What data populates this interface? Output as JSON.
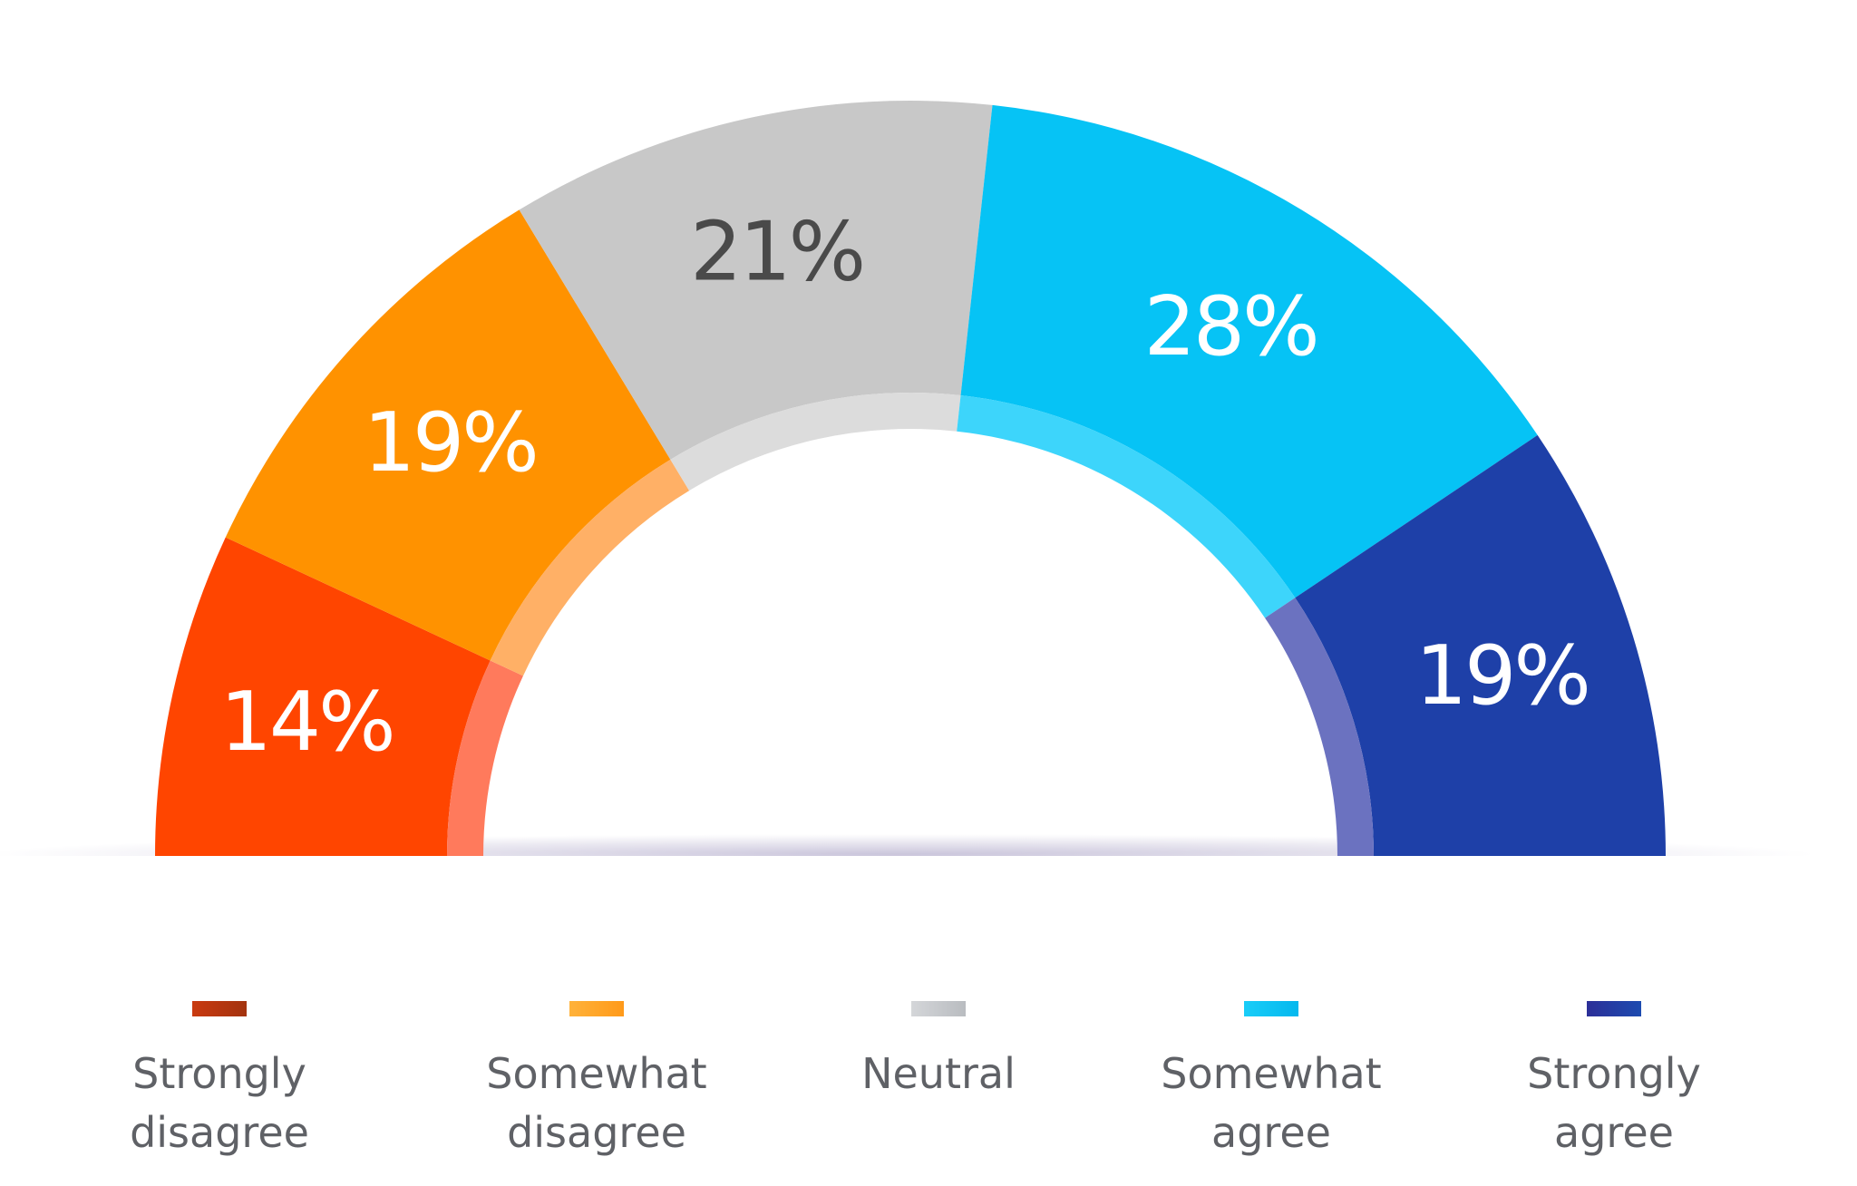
{
  "chart_data": {
    "type": "pie",
    "variant": "semi-donut",
    "unit": "%",
    "series": [
      {
        "name": "Strongly disagree",
        "legend_lines": [
          "Strongly",
          "disagree"
        ],
        "value": 14,
        "label": "14%",
        "color": "#ff4500",
        "color_light": "#ff7a5c",
        "label_color": "#ffffff",
        "swatch": [
          "#c93a10",
          "#a3330f"
        ]
      },
      {
        "name": "Somewhat disagree",
        "legend_lines": [
          "Somewhat",
          "disagree"
        ],
        "value": 19,
        "label": "19%",
        "color": "#ff9200",
        "color_light": "#ffb066",
        "label_color": "#ffffff",
        "swatch": [
          "#ffb23a",
          "#ff9a1a"
        ]
      },
      {
        "name": "Neutral",
        "legend_lines": [
          "Neutral"
        ],
        "value": 21,
        "label": "21%",
        "color": "#c8c8c8",
        "color_light": "#dcdcdc",
        "label_color": "#4a4a4a",
        "swatch": [
          "#d4d6d9",
          "#b9bcc0"
        ]
      },
      {
        "name": "Somewhat agree",
        "legend_lines": [
          "Somewhat",
          "agree"
        ],
        "value": 28,
        "label": "28%",
        "color": "#06c3f5",
        "color_light": "#3dd5fb",
        "label_color": "#ffffff",
        "swatch": [
          "#19cdf8",
          "#05b8ee"
        ]
      },
      {
        "name": "Strongly agree",
        "legend_lines": [
          "Strongly",
          "agree"
        ],
        "value": 19,
        "label": "19%",
        "color": "#1e40a8",
        "color_light": "#6b72c0",
        "label_color": "#ffffff",
        "swatch": [
          "#2c2f98",
          "#1d4bb0"
        ]
      }
    ],
    "legend_position": "bottom",
    "grid": false
  }
}
